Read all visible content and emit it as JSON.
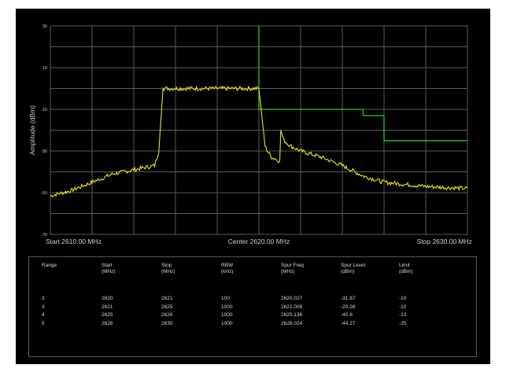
{
  "chart_data": {
    "type": "line",
    "title": "",
    "xlabel": "",
    "ylabel": "Amplitude (dBm)",
    "xlim": [
      2610,
      2630
    ],
    "ylim": [
      -70,
      30
    ],
    "grid": true,
    "x_tick_labels": {
      "start": "Start 2610.00 MHz",
      "center": "Center 2620.00 MHz",
      "stop": "Stop 2630.00 MHz"
    },
    "y_ticks": [
      30,
      10,
      -10,
      -30,
      -50,
      -70
    ],
    "y_tick_labels": [
      "30",
      "10",
      "-10",
      "-30",
      "-50",
      "-70"
    ],
    "series": [
      {
        "color": "#e6e619",
        "style": "spectrum trace",
        "x": [
          2610,
          2611,
          2612,
          2613,
          2614,
          2615,
          2615.2,
          2615.4,
          2616,
          2617,
          2618,
          2619,
          2620,
          2620.3,
          2620.6,
          2620.85,
          2621.0,
          2621.05,
          2621.2,
          2621.5,
          2622,
          2623,
          2624,
          2625,
          2626,
          2627,
          2628,
          2629,
          2630
        ],
        "y": [
          -51.5,
          -49,
          -45,
          -41,
          -39,
          -37,
          -30,
          0,
          0,
          0,
          0,
          0,
          0,
          -28,
          -33,
          -34,
          -35,
          -20,
          -25,
          -27.5,
          -30,
          -33,
          -37,
          -42,
          -45,
          -46,
          -47,
          -47.5,
          -48
        ]
      },
      {
        "color": "#22cc22",
        "style": "limit line",
        "x": [
          2620,
          2620,
          2625,
          2625,
          2626,
          2626,
          2630
        ],
        "y": [
          30,
          -10,
          -10,
          -13,
          -13,
          -25,
          -25
        ]
      }
    ]
  },
  "table": {
    "headers": [
      {
        "line1": "Range",
        "line2": ""
      },
      {
        "line1": "Start",
        "line2": "(MHz)"
      },
      {
        "line1": "Stop",
        "line2": "(MHz)"
      },
      {
        "line1": "RBW",
        "line2": "(kHz)"
      },
      {
        "line1": "Spur Freq",
        "line2": "(MHz)"
      },
      {
        "line1": "Spur Level",
        "line2": "(dBm)"
      },
      {
        "line1": "Limit",
        "line2": "(dBm)"
      }
    ],
    "rows": [
      [
        "2",
        "2620",
        "2621",
        "100",
        "2620.027",
        "-31.87",
        "-10"
      ],
      [
        "3",
        "2621",
        "2625",
        "1000",
        "2621.008",
        "-20.28",
        "-10"
      ],
      [
        "4",
        "2625",
        "2626",
        "1000",
        "2625.136",
        "-40.8",
        "-13"
      ],
      [
        "5",
        "2626",
        "2630",
        "1000",
        "2626.024",
        "-44.27",
        "-25"
      ]
    ]
  }
}
